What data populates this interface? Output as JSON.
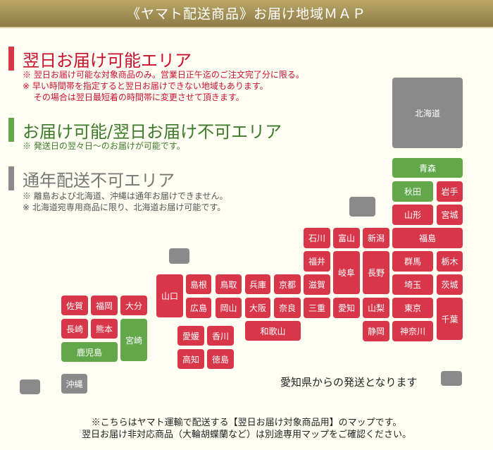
{
  "header": {
    "title": "《ヤマト配送商品》お届け地域ＭＡＰ"
  },
  "colors": {
    "next_day": "#d8374a",
    "standard": "#62a84b",
    "unavailable": "#8a8a8a"
  },
  "legend": [
    {
      "title": "翌日お届け可能エリア",
      "notes": "※ 翌日お届け可能な対象商品のみ。営業日正午迄のご注文完了分に限る。\n※ 早い時間帯を指定すると翌日お届けできない地域もあります。\n　 その場合は翌日最短着の時間帯に変更させて頂きます。"
    },
    {
      "title": "お届け可能/翌日お届け不可エリア",
      "notes": "※ 発送日の翌々日～のお届けが可能です。"
    },
    {
      "title": "通年配送不可エリア",
      "notes": "※ 離島および北海道、沖縄は通年お届けできません。\n※ 北海道宛専用商品に限り、北海道お届け可能です。"
    }
  ],
  "prefectures": [
    {
      "name": "北海道",
      "status": "unavailable"
    },
    {
      "name": "青森",
      "status": "standard"
    },
    {
      "name": "秋田",
      "status": "standard"
    },
    {
      "name": "岩手",
      "status": "next_day"
    },
    {
      "name": "山形",
      "status": "next_day"
    },
    {
      "name": "宮城",
      "status": "next_day"
    },
    {
      "name": "石川",
      "status": "next_day"
    },
    {
      "name": "富山",
      "status": "next_day"
    },
    {
      "name": "新潟",
      "status": "next_day"
    },
    {
      "name": "福島",
      "status": "next_day"
    },
    {
      "name": "福井",
      "status": "next_day"
    },
    {
      "name": "岐阜",
      "status": "next_day"
    },
    {
      "name": "長野",
      "status": "next_day"
    },
    {
      "name": "群馬",
      "status": "next_day"
    },
    {
      "name": "栃木",
      "status": "next_day"
    },
    {
      "name": "滋賀",
      "status": "next_day"
    },
    {
      "name": "埼玉",
      "status": "next_day"
    },
    {
      "name": "茨城",
      "status": "next_day"
    },
    {
      "name": "山口",
      "status": "next_day"
    },
    {
      "name": "島根",
      "status": "next_day"
    },
    {
      "name": "鳥取",
      "status": "next_day"
    },
    {
      "name": "兵庫",
      "status": "next_day"
    },
    {
      "name": "京都",
      "status": "next_day"
    },
    {
      "name": "広島",
      "status": "next_day"
    },
    {
      "name": "岡山",
      "status": "next_day"
    },
    {
      "name": "大阪",
      "status": "next_day"
    },
    {
      "name": "奈良",
      "status": "next_day"
    },
    {
      "name": "三重",
      "status": "next_day"
    },
    {
      "name": "愛知",
      "status": "next_day"
    },
    {
      "name": "山梨",
      "status": "next_day"
    },
    {
      "name": "東京",
      "status": "next_day"
    },
    {
      "name": "千葉",
      "status": "next_day"
    },
    {
      "name": "和歌山",
      "status": "next_day"
    },
    {
      "name": "静岡",
      "status": "next_day"
    },
    {
      "name": "神奈川",
      "status": "next_day"
    },
    {
      "name": "佐賀",
      "status": "next_day"
    },
    {
      "name": "福岡",
      "status": "next_day"
    },
    {
      "name": "大分",
      "status": "next_day"
    },
    {
      "name": "長崎",
      "status": "next_day"
    },
    {
      "name": "熊本",
      "status": "next_day"
    },
    {
      "name": "宮崎",
      "status": "standard"
    },
    {
      "name": "鹿児島",
      "status": "standard"
    },
    {
      "name": "愛媛",
      "status": "next_day"
    },
    {
      "name": "香川",
      "status": "next_day"
    },
    {
      "name": "高知",
      "status": "next_day"
    },
    {
      "name": "徳島",
      "status": "next_day"
    },
    {
      "name": "沖縄",
      "status": "unavailable"
    }
  ],
  "origin_note": "愛知県からの発送となります",
  "footer": [
    "※こちらはヤマト運輸で配送する【翌日お届け対象商品用】のマップです。",
    "翌日お届け非対応商品（大輪胡蝶蘭など）は別途専用マップをご確認ください。"
  ]
}
